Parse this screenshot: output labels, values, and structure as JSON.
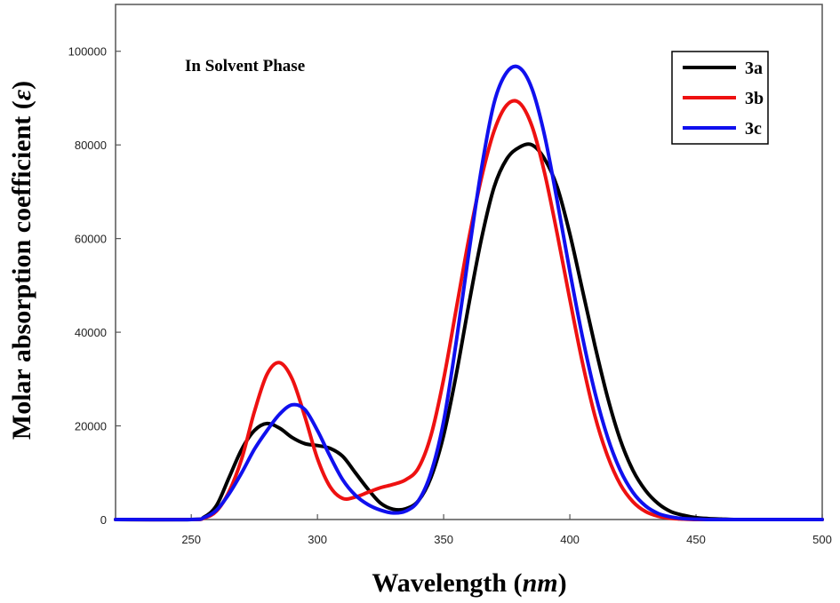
{
  "chart_data": {
    "type": "line",
    "annotation": "In Solvent Phase",
    "xlabel": {
      "text": "Wavelength (",
      "unit": "nm",
      "close": ")"
    },
    "ylabel": {
      "text": "Molar absorption coefficient (",
      "unit": "ε",
      "close": ")"
    },
    "xlim": [
      220,
      500
    ],
    "ylim": [
      0,
      110000
    ],
    "xticks": [
      250,
      300,
      350,
      400,
      450,
      500
    ],
    "yticks": [
      0,
      20000,
      40000,
      60000,
      80000,
      100000
    ],
    "xtick_labels": [
      "250",
      "300",
      "350",
      "400",
      "450",
      "500"
    ],
    "ytick_labels": [
      "0",
      "20000",
      "40000",
      "60000",
      "80000",
      "100000"
    ],
    "legend_position": "top-right",
    "series": [
      {
        "name": "3a",
        "color": "#000000",
        "x": [
          220,
          250,
          255,
          260,
          265,
          270,
          275,
          280,
          285,
          290,
          295,
          300,
          305,
          310,
          315,
          320,
          325,
          330,
          335,
          340,
          345,
          350,
          355,
          360,
          365,
          370,
          375,
          380,
          385,
          390,
          395,
          400,
          405,
          410,
          415,
          420,
          425,
          430,
          435,
          440,
          445,
          450,
          455,
          460,
          465,
          470,
          500
        ],
        "y": [
          0,
          0,
          500,
          3000,
          9000,
          15000,
          19000,
          20500,
          19500,
          17500,
          16200,
          15800,
          15200,
          13500,
          10000,
          6500,
          3500,
          2200,
          2300,
          4000,
          9000,
          18000,
          31000,
          46000,
          60000,
          71000,
          77000,
          79500,
          80000,
          77000,
          71000,
          61000,
          49000,
          37000,
          26000,
          17000,
          10500,
          6200,
          3400,
          1700,
          900,
          400,
          200,
          100,
          0,
          0,
          0
        ]
      },
      {
        "name": "3b",
        "color": "#ee1111",
        "x": [
          220,
          250,
          255,
          260,
          265,
          270,
          275,
          280,
          285,
          290,
          295,
          300,
          305,
          310,
          315,
          320,
          325,
          330,
          335,
          340,
          345,
          350,
          355,
          360,
          365,
          370,
          375,
          380,
          385,
          390,
          395,
          400,
          405,
          410,
          415,
          420,
          425,
          430,
          435,
          440,
          445,
          450,
          455,
          460,
          500
        ],
        "y": [
          0,
          0,
          300,
          1800,
          6000,
          13000,
          23000,
          31000,
          33500,
          30000,
          22000,
          13000,
          7000,
          4500,
          4800,
          5800,
          6800,
          7500,
          8500,
          11000,
          18000,
          30000,
          45000,
          60000,
          73000,
          83000,
          88500,
          89000,
          84000,
          74000,
          61000,
          47000,
          33500,
          22000,
          13500,
          7500,
          3800,
          1700,
          700,
          250,
          100,
          0,
          0,
          0,
          0
        ]
      },
      {
        "name": "3c",
        "color": "#1010ee",
        "x": [
          220,
          250,
          255,
          260,
          265,
          270,
          275,
          280,
          285,
          290,
          295,
          300,
          305,
          310,
          315,
          320,
          325,
          330,
          335,
          340,
          345,
          350,
          355,
          360,
          365,
          370,
          375,
          380,
          385,
          390,
          395,
          400,
          405,
          410,
          415,
          420,
          425,
          430,
          435,
          440,
          445,
          450,
          455,
          460,
          500
        ],
        "y": [
          0,
          0,
          400,
          2000,
          5500,
          10000,
          15000,
          19000,
          22500,
          24500,
          23500,
          19000,
          13500,
          8500,
          5200,
          3200,
          2000,
          1400,
          1800,
          4000,
          10000,
          21000,
          38000,
          57000,
          75000,
          89000,
          95500,
          96500,
          92000,
          82000,
          68000,
          53000,
          39000,
          27000,
          17500,
          10500,
          5800,
          2900,
          1300,
          550,
          200,
          80,
          0,
          0,
          0
        ]
      }
    ]
  }
}
